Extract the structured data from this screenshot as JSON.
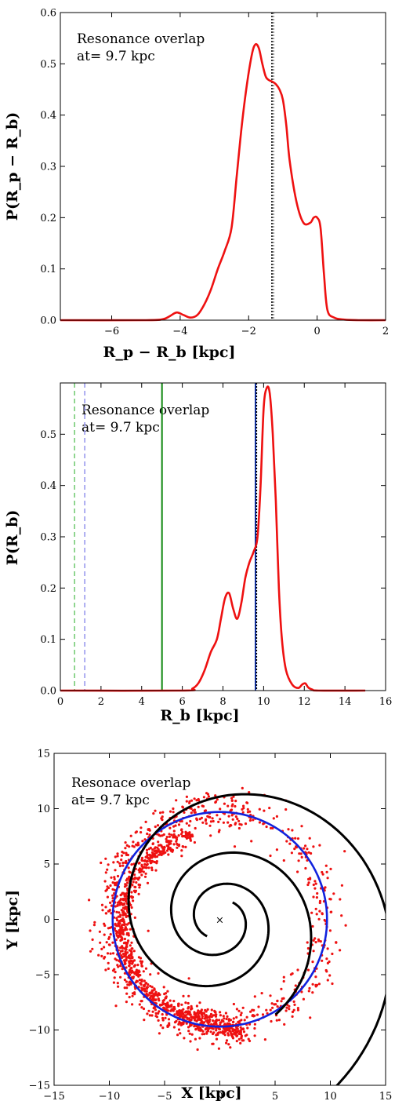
{
  "chart_data": [
    {
      "type": "line",
      "xlabel": "R_p − R_b [kpc]",
      "ylabel": "P(R_p − R_b)",
      "xlim": [
        -7.5,
        2
      ],
      "ylim": [
        0,
        0.6
      ],
      "xticks": [
        -6,
        -4,
        -2,
        0,
        2
      ],
      "yticks": [
        0.0,
        0.1,
        0.2,
        0.3,
        0.4,
        0.5,
        0.6
      ],
      "xtick_labels": [
        "−6",
        "−4",
        "−2",
        "0",
        "2"
      ],
      "ytick_labels": [
        "0.0",
        "0.1",
        "0.2",
        "0.3",
        "0.4",
        "0.5",
        "0.6"
      ],
      "annotation": [
        "Resonance overlap",
        "at= 9.7 kpc"
      ],
      "series": [
        {
          "color": "#ee1111",
          "x": [
            -7.5,
            -5.0,
            -4.5,
            -4.3,
            -4.1,
            -3.9,
            -3.7,
            -3.5,
            -3.3,
            -3.1,
            -2.9,
            -2.7,
            -2.5,
            -2.35,
            -2.2,
            -2.05,
            -1.9,
            -1.8,
            -1.7,
            -1.6,
            -1.5,
            -1.4,
            -1.3,
            -1.2,
            -1.1,
            -1.0,
            -0.9,
            -0.8,
            -0.6,
            -0.4,
            -0.2,
            -0.1,
            0.0,
            0.1,
            0.2,
            0.3,
            0.5,
            0.8,
            1.2,
            2.0
          ],
          "y": [
            0.0,
            0.0,
            0.002,
            0.008,
            0.015,
            0.01,
            0.005,
            0.01,
            0.03,
            0.06,
            0.1,
            0.135,
            0.18,
            0.28,
            0.38,
            0.46,
            0.52,
            0.538,
            0.53,
            0.5,
            0.475,
            0.468,
            0.465,
            0.46,
            0.45,
            0.43,
            0.38,
            0.31,
            0.23,
            0.19,
            0.19,
            0.2,
            0.2,
            0.18,
            0.09,
            0.02,
            0.005,
            0.001,
            0.0,
            0.0
          ]
        }
      ],
      "vlines": [
        {
          "x": -1.32,
          "color": "#000000",
          "style": "dotted"
        },
        {
          "x": -1.27,
          "color": "#888888",
          "style": "dotted"
        }
      ]
    },
    {
      "type": "line",
      "xlabel": "R_b [kpc]",
      "ylabel": "P(R_b)",
      "xlim": [
        0,
        16
      ],
      "ylim": [
        0,
        0.6
      ],
      "xticks": [
        0,
        2,
        4,
        6,
        8,
        10,
        12,
        14,
        16
      ],
      "yticks": [
        0.0,
        0.1,
        0.2,
        0.3,
        0.4,
        0.5
      ],
      "xtick_labels": [
        "0",
        "2",
        "4",
        "6",
        "8",
        "10",
        "12",
        "14",
        "16"
      ],
      "ytick_labels": [
        "0.0",
        "0.1",
        "0.2",
        "0.3",
        "0.4",
        "0.5"
      ],
      "annotation": [
        "Resonance overlap",
        "at= 9.7 kpc"
      ],
      "series": [
        {
          "color": "#ee1111",
          "x": [
            0,
            6.0,
            6.5,
            6.8,
            7.1,
            7.4,
            7.7,
            7.9,
            8.1,
            8.3,
            8.5,
            8.7,
            8.9,
            9.1,
            9.3,
            9.5,
            9.7,
            9.85,
            10.0,
            10.15,
            10.3,
            10.45,
            10.6,
            10.75,
            10.9,
            11.1,
            11.4,
            11.7,
            11.9,
            12.05,
            12.2,
            12.4,
            12.7,
            15.0
          ],
          "y": [
            0.0,
            0.0,
            0.004,
            0.015,
            0.04,
            0.075,
            0.1,
            0.14,
            0.18,
            0.19,
            0.16,
            0.14,
            0.17,
            0.22,
            0.25,
            0.27,
            0.3,
            0.4,
            0.55,
            0.59,
            0.58,
            0.5,
            0.37,
            0.2,
            0.1,
            0.04,
            0.012,
            0.005,
            0.012,
            0.014,
            0.006,
            0.002,
            0.0,
            0.0
          ]
        }
      ],
      "vlines": [
        {
          "x": 0.7,
          "color": "#77cc77",
          "style": "dashed"
        },
        {
          "x": 1.2,
          "color": "#9999ee",
          "style": "dashed"
        },
        {
          "x": 5.0,
          "color": "#118811",
          "style": "solid"
        },
        {
          "x": 9.6,
          "color": "#1133aa",
          "style": "solid"
        },
        {
          "x": 9.65,
          "color": "#000000",
          "style": "dotted"
        }
      ]
    },
    {
      "type": "scatter",
      "xlabel": "X [kpc]",
      "ylabel": "Y [kpc]",
      "xlim": [
        -15,
        15
      ],
      "ylim": [
        -15,
        15
      ],
      "xticks": [
        -15,
        -10,
        -5,
        0,
        5,
        10,
        15
      ],
      "yticks": [
        -15,
        -10,
        -5,
        0,
        5,
        10,
        15
      ],
      "xtick_labels": [
        "−15",
        "−10",
        "−5",
        "0",
        "5",
        "10",
        "15"
      ],
      "ytick_labels": [
        "−15",
        "−10",
        "−5",
        "0",
        "5",
        "10",
        "15"
      ],
      "annotation": [
        "Resonace overlap",
        "at= 9.7 kpc"
      ],
      "center_marker": {
        "x": 0,
        "y": 0,
        "symbol": "×"
      },
      "circle": {
        "cx": 0,
        "cy": 0,
        "r": 9.7,
        "color": "#1122dd"
      },
      "spiral_arms": [
        {
          "color": "#000000",
          "a": 0.35,
          "b": 0.2,
          "theta_start": 8.5,
          "theta_end": 23.5,
          "rot": 0.0
        },
        {
          "color": "#000000",
          "a": 0.35,
          "b": 0.2,
          "theta_start": 8.5,
          "theta_end": 16.8,
          "rot": 3.14159
        }
      ],
      "points_color": "#ee1111"
    }
  ]
}
